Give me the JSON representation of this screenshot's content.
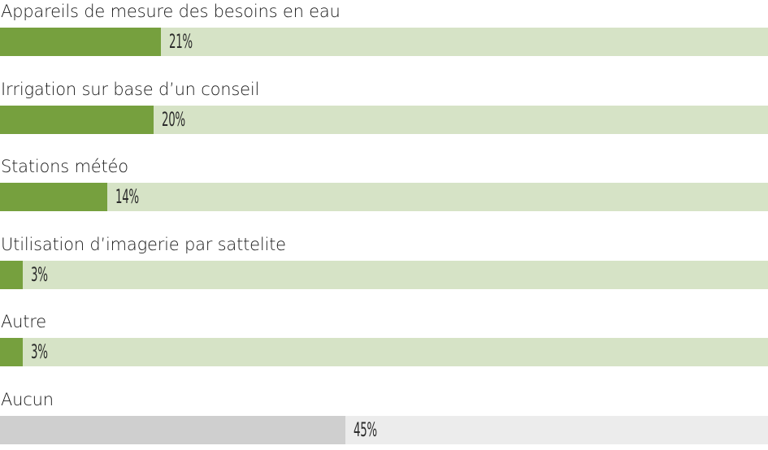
{
  "chart_data": {
    "type": "bar",
    "orientation": "horizontal",
    "categories": [
      "Appareils de mesure des besoins en eau",
      "Irrigation sur base d’un conseil",
      "Stations météo",
      "Utilisation d’imagerie par sattelite",
      "Autre",
      "Aucun"
    ],
    "values": [
      21,
      20,
      14,
      3,
      3,
      45
    ],
    "value_labels": [
      "21%",
      "20%",
      "14%",
      "3%",
      "3%",
      "45%"
    ],
    "xlim": [
      0,
      100
    ],
    "colors": {
      "fill": "#76a03e",
      "track": "#d6e3c6",
      "fill_none": "#cfcfcf",
      "track_none": "#ececec"
    }
  }
}
